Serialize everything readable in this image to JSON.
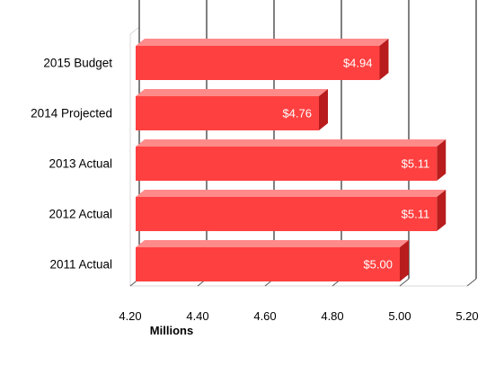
{
  "chart_data": {
    "type": "bar",
    "orientation": "horizontal",
    "style": "3d",
    "categories": [
      "2015 Budget",
      "2014 Projected",
      "2013 Actual",
      "2012 Actual",
      "2011 Actual"
    ],
    "values": [
      4.94,
      4.76,
      5.11,
      5.11,
      5.0
    ],
    "data_labels": [
      "$4.94",
      "$4.76",
      "$5.11",
      "$5.11",
      "$5.00"
    ],
    "xlim": [
      4.2,
      5.2
    ],
    "xticks": [
      "4.20",
      "4.40",
      "4.60",
      "4.80",
      "5.00",
      "5.20"
    ],
    "xlabel": "Millions",
    "grid": true,
    "legend": false,
    "colors": {
      "bar_front": "#ff4040",
      "bar_top": "#ff8a8a",
      "bar_side": "#b81c1c",
      "grid": "#000000",
      "wall": "#d9d9d9"
    }
  }
}
